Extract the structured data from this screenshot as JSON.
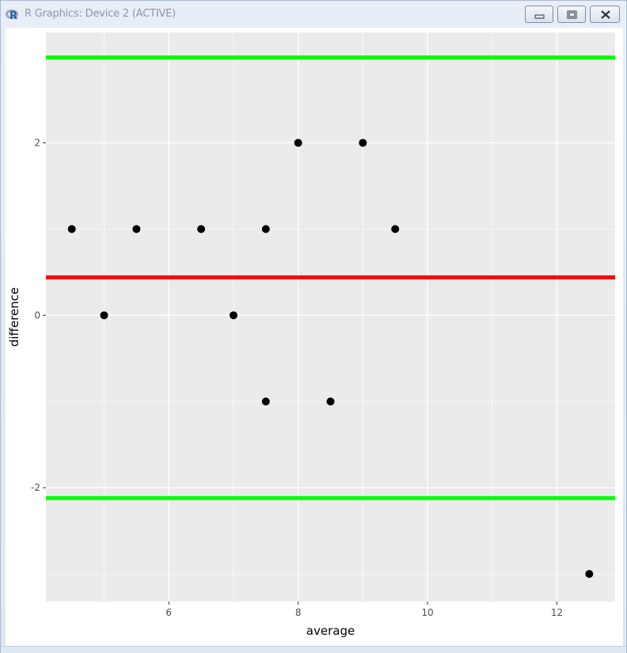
{
  "window": {
    "title": "R Graphics: Device 2 (ACTIVE)",
    "icon": "r-logo-icon",
    "buttons": [
      {
        "name": "minimize-button",
        "icon": "minimize-icon"
      },
      {
        "name": "maximize-button",
        "icon": "maximize-icon"
      },
      {
        "name": "close-button",
        "icon": "close-icon"
      }
    ]
  },
  "chart_data": {
    "type": "scatter",
    "xlabel": "average",
    "ylabel": "difference",
    "xlim": [
      4.1,
      12.9
    ],
    "ylim": [
      -3.32,
      3.28
    ],
    "x_ticks": [
      6,
      8,
      10,
      12
    ],
    "y_ticks": [
      -2,
      0,
      2
    ],
    "grid": true,
    "panel_background": "#ebebeb",
    "points": [
      {
        "x": 4.5,
        "y": 1
      },
      {
        "x": 5.0,
        "y": 0
      },
      {
        "x": 5.5,
        "y": 1
      },
      {
        "x": 6.5,
        "y": 1
      },
      {
        "x": 7.0,
        "y": 0
      },
      {
        "x": 7.5,
        "y": 1
      },
      {
        "x": 7.5,
        "y": -1
      },
      {
        "x": 8.0,
        "y": 2
      },
      {
        "x": 8.5,
        "y": -1
      },
      {
        "x": 9.0,
        "y": 2
      },
      {
        "x": 9.5,
        "y": 1
      },
      {
        "x": 12.5,
        "y": -3
      }
    ],
    "hlines": [
      {
        "y": 2.99,
        "color": "#00ff00"
      },
      {
        "y": 0.44,
        "color": "#ff0000"
      },
      {
        "y": -2.12,
        "color": "#00ff00"
      }
    ],
    "point_color": "#000000"
  }
}
